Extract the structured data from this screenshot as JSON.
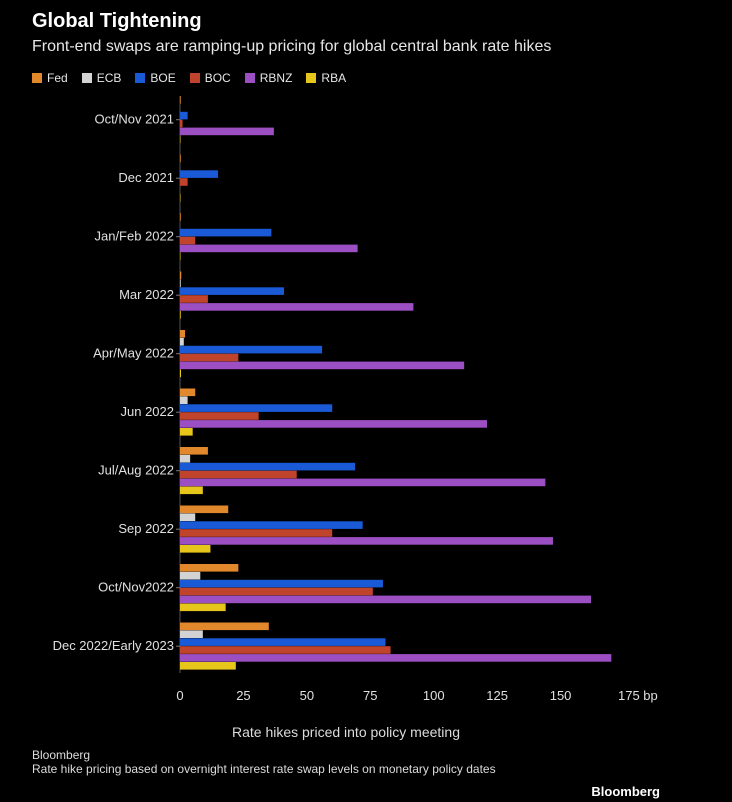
{
  "chart_data": {
    "type": "bar",
    "orientation": "horizontal",
    "title": "Global Tightening",
    "subtitle": "Front-end swaps are ramping-up pricing for global central bank rate hikes",
    "xlabel": "Rate hikes priced into policy meeting",
    "x_unit": "bp",
    "xlim": [
      0,
      175
    ],
    "xticks": [
      "0",
      "25",
      "50",
      "75",
      "100",
      "125",
      "150",
      "175 bp"
    ],
    "grid": false,
    "legend_position": "top-left",
    "categories": [
      "Oct/Nov 2021",
      "Dec 2021",
      "Jan/Feb 2022",
      "Mar 2022",
      "Apr/May 2022",
      "Jun 2022",
      "Jul/Aug 2022",
      "Sep 2022",
      "Oct/Nov2022",
      "Dec 2022/Early 2023"
    ],
    "series": [
      {
        "name": "Fed",
        "color": "#e0882b",
        "values": [
          0.3,
          0.3,
          0.3,
          0.5,
          2,
          6,
          11,
          19,
          23,
          35
        ]
      },
      {
        "name": "ECB",
        "color": "#d3d3d3",
        "values": [
          0,
          0,
          0,
          0.3,
          1.5,
          3,
          4,
          6,
          8,
          9
        ]
      },
      {
        "name": "BOE",
        "color": "#1a5ad6",
        "values": [
          3,
          15,
          36,
          41,
          56,
          60,
          69,
          72,
          80,
          81
        ]
      },
      {
        "name": "BOC",
        "color": "#c0432b",
        "values": [
          1,
          3,
          6,
          11,
          23,
          31,
          46,
          60,
          76,
          83
        ]
      },
      {
        "name": "RBNZ",
        "color": "#9b4fc2",
        "values": [
          37,
          0,
          70,
          92,
          112,
          121,
          144,
          147,
          162,
          170
        ]
      },
      {
        "name": "RBA",
        "color": "#e6c61a",
        "values": [
          0.2,
          0.2,
          0.2,
          0.3,
          0.4,
          5,
          9,
          12,
          18,
          22
        ]
      }
    ]
  },
  "footer": {
    "source_name": "Bloomberg",
    "note": "Rate hike pricing based on overnight interest rate swap levels on monetary policy dates",
    "brand": "Bloomberg"
  }
}
